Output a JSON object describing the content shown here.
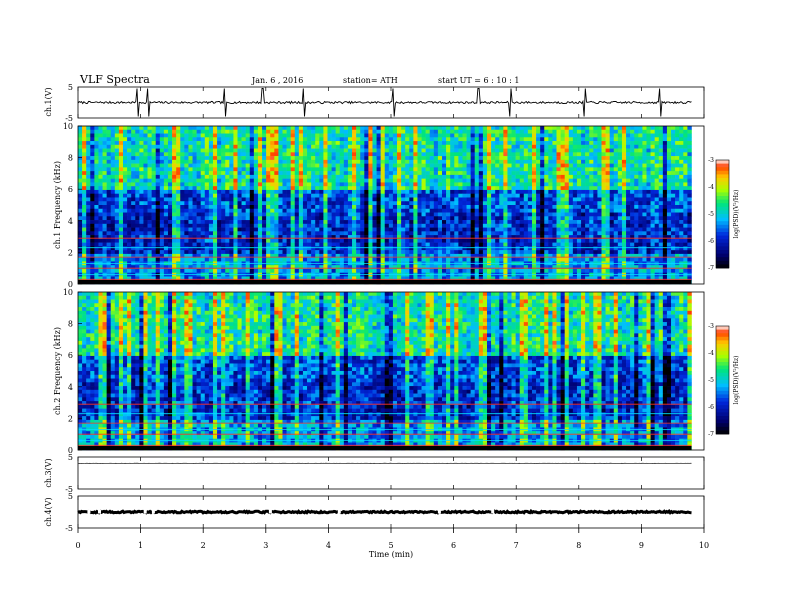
{
  "header": {
    "title": "VLF  Spectra",
    "date": "Jan. 6  , 2016",
    "station": "station= ATH",
    "start": "start  UT  =   6  : 10 : 1"
  },
  "chart_data": [
    {
      "type": "line",
      "name": "ch.1 waveform",
      "ylabel": "ch.1(V)",
      "ylim": [
        -5,
        5
      ],
      "yticks": [
        "5",
        "-5"
      ],
      "xlim": [
        0,
        10
      ],
      "level": 0.0,
      "noise": 0.35,
      "spikes": [
        0.95,
        1.12,
        2.35,
        2.95,
        3.6,
        5.05,
        6.4,
        6.9,
        8.1,
        9.3
      ]
    },
    {
      "type": "heatmap",
      "name": "ch.1 spectrogram",
      "ylabel": "ch.1  Frequency (kHz)",
      "ylim": [
        0,
        10
      ],
      "yticks": [
        "0",
        "2",
        "4",
        "6",
        "8",
        "10"
      ],
      "xlim": [
        0,
        9.8
      ],
      "colorbar": {
        "label": "log(PSD)(V²/Hz)",
        "ticks": [
          "-3",
          "-4",
          "-5",
          "-6",
          "-7"
        ],
        "range": [
          -7,
          -3
        ]
      },
      "seed": 11
    },
    {
      "type": "heatmap",
      "name": "ch.2 spectrogram",
      "ylabel": "ch.2  Frequency (kHz)",
      "ylim": [
        0,
        10
      ],
      "yticks": [
        "0",
        "2",
        "4",
        "6",
        "8",
        "10"
      ],
      "xlim": [
        0,
        9.8
      ],
      "colorbar": {
        "label": "log(PSD)(V²/Hz)",
        "ticks": [
          "-3",
          "-4",
          "-5",
          "-6",
          "-7"
        ],
        "range": [
          -7,
          -3
        ]
      },
      "seed": 29
    },
    {
      "type": "line",
      "name": "ch.3 waveform",
      "ylabel": "ch.3(V)",
      "ylim": [
        -5,
        5
      ],
      "yticks": [
        "5",
        "-5"
      ],
      "xlim": [
        0,
        10
      ],
      "level": 3.0,
      "noise": 0.05,
      "spikes": []
    },
    {
      "type": "line",
      "name": "ch.4 waveform",
      "ylabel": "ch.4(V)",
      "ylim": [
        -5,
        5
      ],
      "yticks": [
        "5",
        "-5"
      ],
      "xlim": [
        0,
        10
      ],
      "level": 0.0,
      "noise": 0.25,
      "spikes": []
    }
  ],
  "x_axis": {
    "label": "Time  (min)",
    "ticks": [
      "0",
      "1",
      "2",
      "3",
      "4",
      "5",
      "6",
      "7",
      "8",
      "9",
      "10"
    ]
  }
}
